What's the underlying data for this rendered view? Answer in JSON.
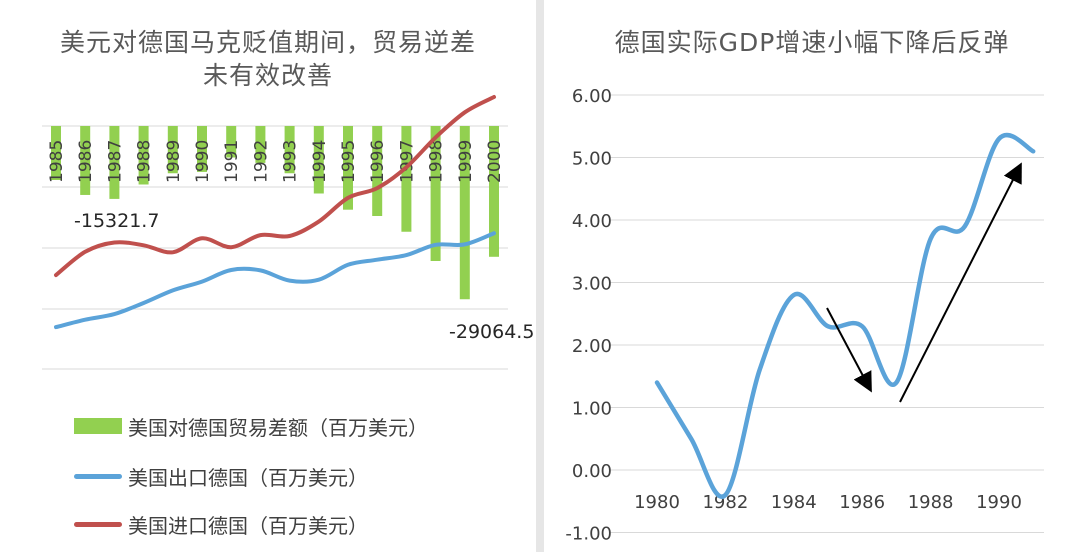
{
  "left": {
    "title": "美元对德国马克贬值期间，贸易逆差未有效改善",
    "annotation_1986": "-15321.7",
    "annotation_2000": "-29064.5",
    "legend": [
      {
        "label": "美国对德国贸易差额（百万美元）",
        "color": "#92d050"
      },
      {
        "label": "美国出口德国（百万美元）",
        "color": "#5ba3d9"
      },
      {
        "label": "美国进口德国（百万美元）",
        "color": "#c0504d"
      }
    ]
  },
  "right": {
    "title": "德国实际GDP增速小幅下降后反弹"
  },
  "chart_data": [
    {
      "type": "bar+line",
      "title": "美元对德国马克贬值期间，贸易逆差未有效改善",
      "categories": [
        "1985",
        "1986",
        "1987",
        "1988",
        "1989",
        "1990",
        "1991",
        "1992",
        "1993",
        "1994",
        "1995",
        "1996",
        "1997",
        "1998",
        "1999",
        "2000"
      ],
      "series": [
        {
          "name": "美国对德国贸易差额（百万美元）",
          "kind": "bar",
          "values": [
            -12000,
            -15321.7,
            -16200,
            -13000,
            -10500,
            -10200,
            -7000,
            -8200,
            -10500,
            -15000,
            -18600,
            -20000,
            -23500,
            -30000,
            -38500,
            -29064.5
          ],
          "color": "#92d050"
        },
        {
          "name": "美国出口德国（百万美元）",
          "kind": "line",
          "values": [
            9000,
            10600,
            11800,
            14200,
            16900,
            18800,
            21300,
            21200,
            19000,
            19200,
            22400,
            23500,
            24500,
            26700,
            26800,
            29200
          ],
          "color": "#5ba3d9"
        },
        {
          "name": "美国进口德国（百万美元）",
          "kind": "line",
          "values": [
            20200,
            25200,
            27200,
            26600,
            25100,
            28100,
            26200,
            28800,
            28600,
            31700,
            36800,
            38900,
            43400,
            49800,
            55200,
            58500
          ],
          "color": "#c0504d"
        }
      ],
      "grid": true,
      "legend_position": "bottom"
    },
    {
      "type": "line",
      "title": "德国实际GDP增速小幅下降后反弹",
      "x": [
        1980,
        1981,
        1982,
        1983,
        1984,
        1985,
        1986,
        1987,
        1988,
        1989,
        1990,
        1991
      ],
      "values": [
        1.4,
        0.5,
        -0.4,
        1.6,
        2.8,
        2.3,
        2.3,
        1.4,
        3.7,
        3.9,
        5.3,
        5.1
      ],
      "ylim": [
        -1.0,
        6.0
      ],
      "yticks": [
        "6.00",
        "5.00",
        "4.00",
        "3.00",
        "2.00",
        "1.00",
        "0.00",
        "-1.00"
      ],
      "xticks": [
        "1980",
        "1982",
        "1984",
        "1986",
        "1988",
        "1990"
      ],
      "color": "#5ba3d9",
      "annotations": [
        "arrow-down 1985-1986.5",
        "arrow-up 1987-1991"
      ],
      "grid": true
    }
  ]
}
